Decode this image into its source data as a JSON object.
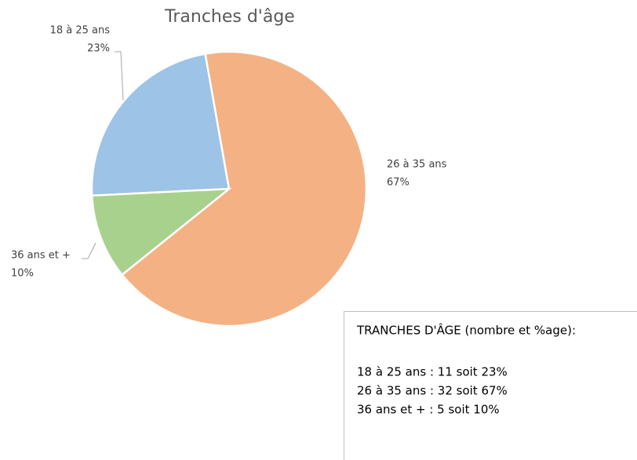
{
  "chart_data": {
    "type": "pie",
    "title": "Tranches d'âge",
    "categories": [
      "18 à 25 ans",
      "26 à 35 ans",
      "36 ans et +"
    ],
    "values": [
      23,
      67,
      10
    ],
    "value_labels": [
      "23%",
      "67%",
      "10%"
    ],
    "colors": [
      "#9dc3e6",
      "#f4b183",
      "#a9d18e"
    ],
    "text_box": {
      "title": "TRANCHES D'ÂGE (nombre et %age):",
      "lines": [
        "18 à 25 ans : 11 soit 23%",
        "26 à 35 ans : 32 soit 67%",
        "36 ans et + : 5 soit 10%"
      ]
    }
  }
}
